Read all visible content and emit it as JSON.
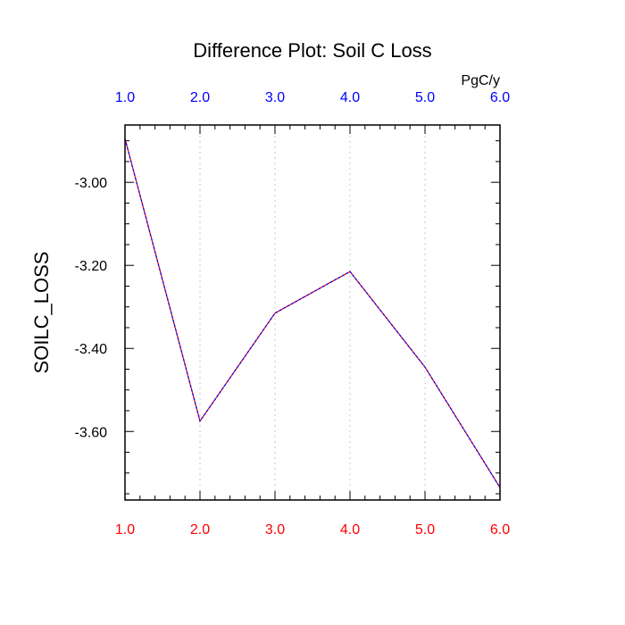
{
  "chart_data": {
    "type": "line",
    "title": "Difference Plot: Soil C Loss",
    "units": "PgC/y",
    "ylabel": "SOILC_LOSS",
    "xlabel": "",
    "x": [
      1.0,
      2.0,
      3.0,
      4.0,
      5.0,
      6.0
    ],
    "series": [
      {
        "values": [
          -2.895,
          -3.575,
          -3.315,
          -3.215,
          -3.445,
          -3.735
        ]
      }
    ],
    "xlim": [
      1.0,
      6.0
    ],
    "ylim": [
      -3.765,
      -2.862
    ],
    "x_ticks": [
      "1.0",
      "2.0",
      "3.0",
      "4.0",
      "5.0",
      "6.0"
    ],
    "y_ticks": [
      {
        "value": -3.0,
        "label": "-3.00"
      },
      {
        "value": -3.2,
        "label": "-3.20"
      },
      {
        "value": -3.4,
        "label": "-3.40"
      },
      {
        "value": -3.6,
        "label": "-3.60"
      }
    ],
    "vertical_gridlines": true,
    "line_style": "dashed",
    "colors": {
      "line_primary": "#ff0000",
      "line_overlay": "#0000ff",
      "bottom_ticks": "#ff0000",
      "top_ticks": "#0000ff",
      "grid": "#c8c8c8",
      "axes": "#000000"
    }
  }
}
